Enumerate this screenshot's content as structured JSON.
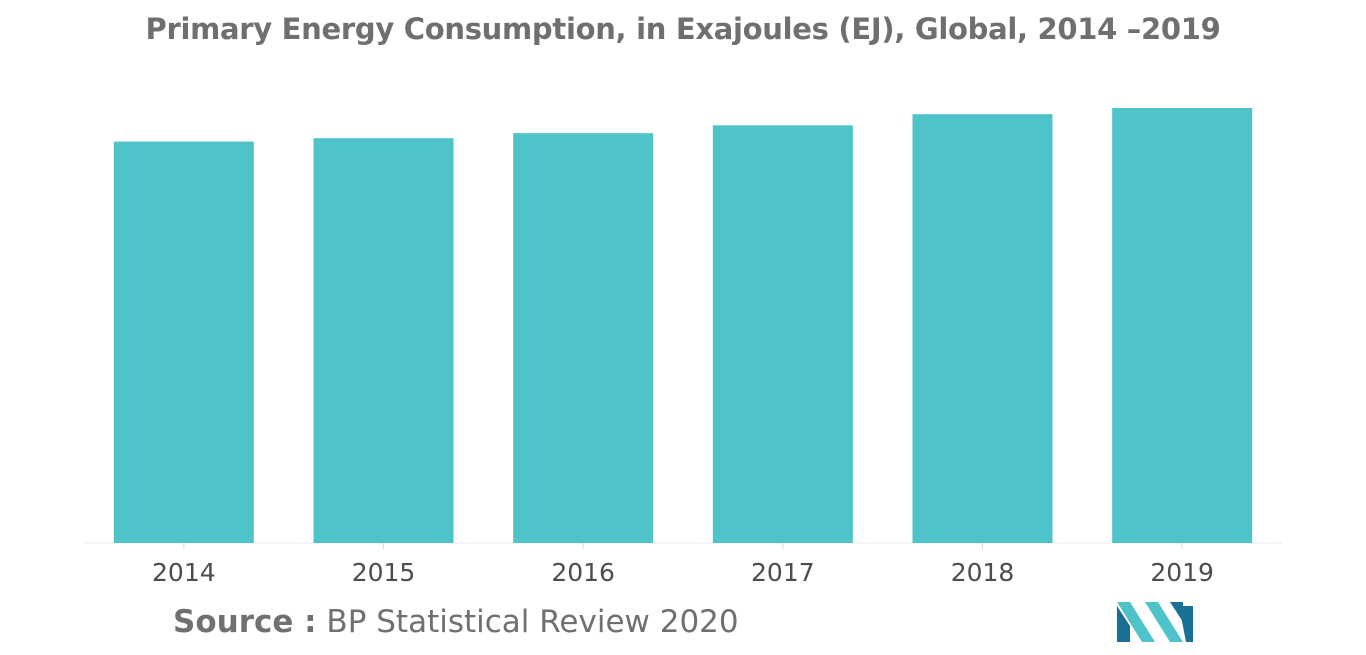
{
  "chart_data": {
    "type": "bar",
    "title": "Primary Energy Consumption, in Exajoules (EJ), Global, 2014 –2019",
    "xlabel": "",
    "ylabel": "",
    "categories": [
      "2014",
      "2015",
      "2016",
      "2017",
      "2018",
      "2019"
    ],
    "values": [
      557.1,
      561.8,
      568.8,
      579.7,
      595.1,
      603.7
    ],
    "ylim": [
      0,
      603.7
    ],
    "grid": false,
    "legend": "none",
    "bar_color": "#4fc3ca"
  },
  "source": {
    "label": "Source :",
    "text": " BP Statistical Review 2020"
  },
  "logo": {
    "icon": "mordor-intelligence-logo",
    "colors": [
      "#1a6f95",
      "#4fc3ca"
    ]
  }
}
